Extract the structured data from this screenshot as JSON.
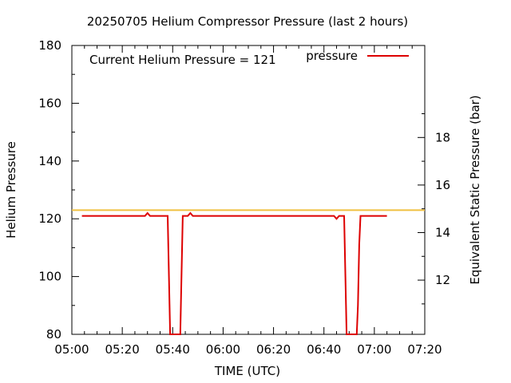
{
  "chart_data": {
    "type": "line",
    "title": "20250705 Helium Compressor Pressure (last 2 hours)",
    "xlabel": "TIME (UTC)",
    "ylabel": "Helium Pressure",
    "y2label": "Equivalent Static Pressure (bar)",
    "annotation": "Current Helium Pressure = 121",
    "legend": {
      "placement": "top-right"
    },
    "grid": false,
    "xlim": [
      "05:00",
      "07:20"
    ],
    "ylim": [
      80,
      180
    ],
    "x_ticks": [
      "05:00",
      "05:20",
      "05:40",
      "06:00",
      "06:20",
      "06:40",
      "07:00",
      "07:20"
    ],
    "y_ticks": [
      80,
      100,
      120,
      140,
      160,
      180
    ],
    "y2_ticks": [
      12,
      14,
      16,
      18
    ],
    "y2_ratio": 0.1215,
    "threshold": {
      "value": 123,
      "color": "#f0c040"
    },
    "series": [
      {
        "name": "pressure",
        "color": "#dd0000",
        "points": [
          [
            "05:04",
            121
          ],
          [
            "05:29",
            121
          ],
          [
            "05:30",
            122
          ],
          [
            "05:31",
            121
          ],
          [
            "05:38",
            121
          ],
          [
            "05:38.5",
            100
          ],
          [
            "05:39",
            80
          ],
          [
            "05:43",
            80
          ],
          [
            "05:43.5",
            100
          ],
          [
            "05:44",
            121
          ],
          [
            "05:46",
            121
          ],
          [
            "05:47",
            122
          ],
          [
            "05:48",
            121
          ],
          [
            "06:44",
            121
          ],
          [
            "06:45",
            120
          ],
          [
            "06:46",
            121
          ],
          [
            "06:48",
            121
          ],
          [
            "06:48.5",
            100
          ],
          [
            "06:49",
            80
          ],
          [
            "06:53",
            80
          ],
          [
            "06:53.5",
            90
          ],
          [
            "06:54",
            111
          ],
          [
            "06:54.5",
            121
          ],
          [
            "07:05",
            121
          ]
        ]
      }
    ]
  }
}
